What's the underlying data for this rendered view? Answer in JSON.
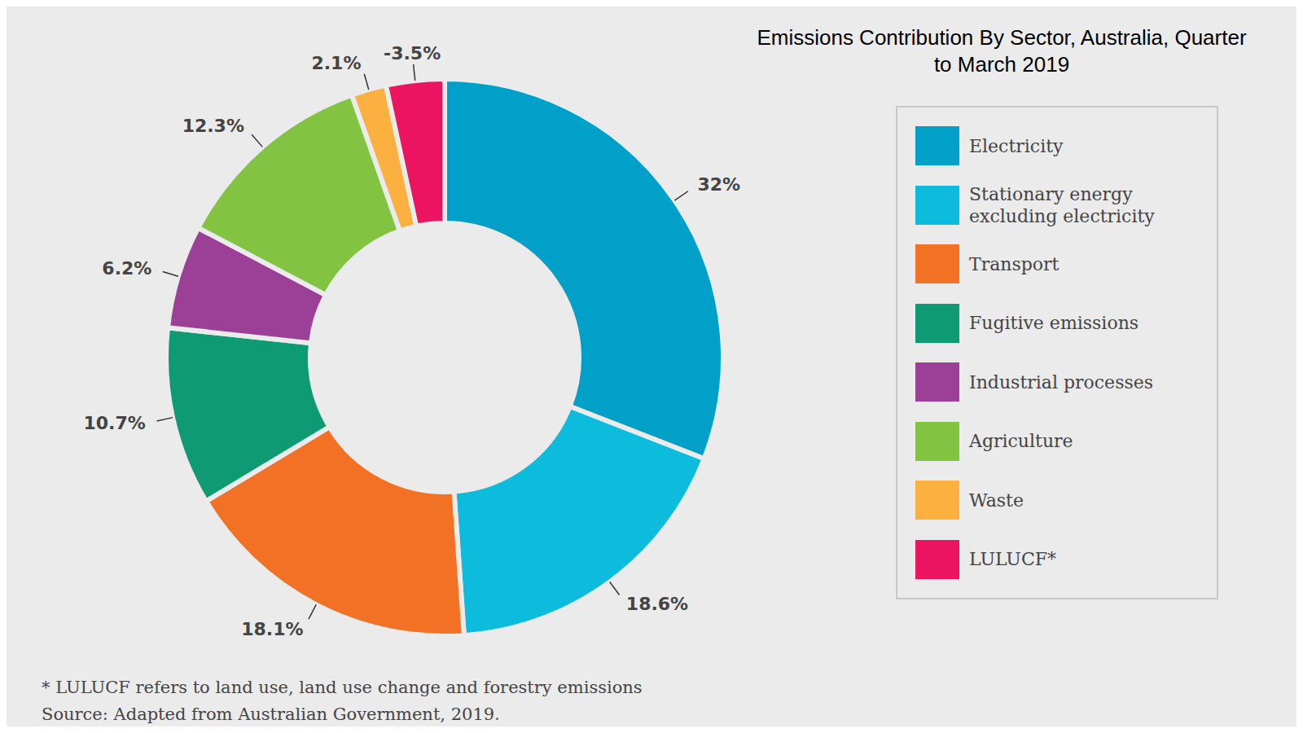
{
  "chart_data": {
    "type": "donut",
    "title": "Emissions Contribution By Sector, Australia, Quarter to March 2019",
    "categories": [
      "Electricity",
      "Stationary energy excluding electricity",
      "Transport",
      "Fugitive emissions",
      "Industrial processes",
      "Agriculture",
      "Waste",
      "LULUCF*"
    ],
    "values": [
      32,
      18.6,
      18.1,
      10.7,
      6.2,
      12.3,
      2.1,
      -3.5
    ],
    "value_labels": [
      "32%",
      "18.6%",
      "18.1%",
      "10.7%",
      "6.2%",
      "12.3%",
      "2.1%",
      "-3.5%"
    ],
    "colors": [
      "#00a0c8",
      "#0dbbdc",
      "#f37124",
      "#0e9a73",
      "#9b3f97",
      "#82c341",
      "#fbb040",
      "#ec1461"
    ],
    "data_labels": true,
    "legend": "right",
    "annotations": [
      "* LULUCF refers to land use, land use change and forestry emissions",
      "Source: Adapted from Australian Government, 2019."
    ]
  }
}
